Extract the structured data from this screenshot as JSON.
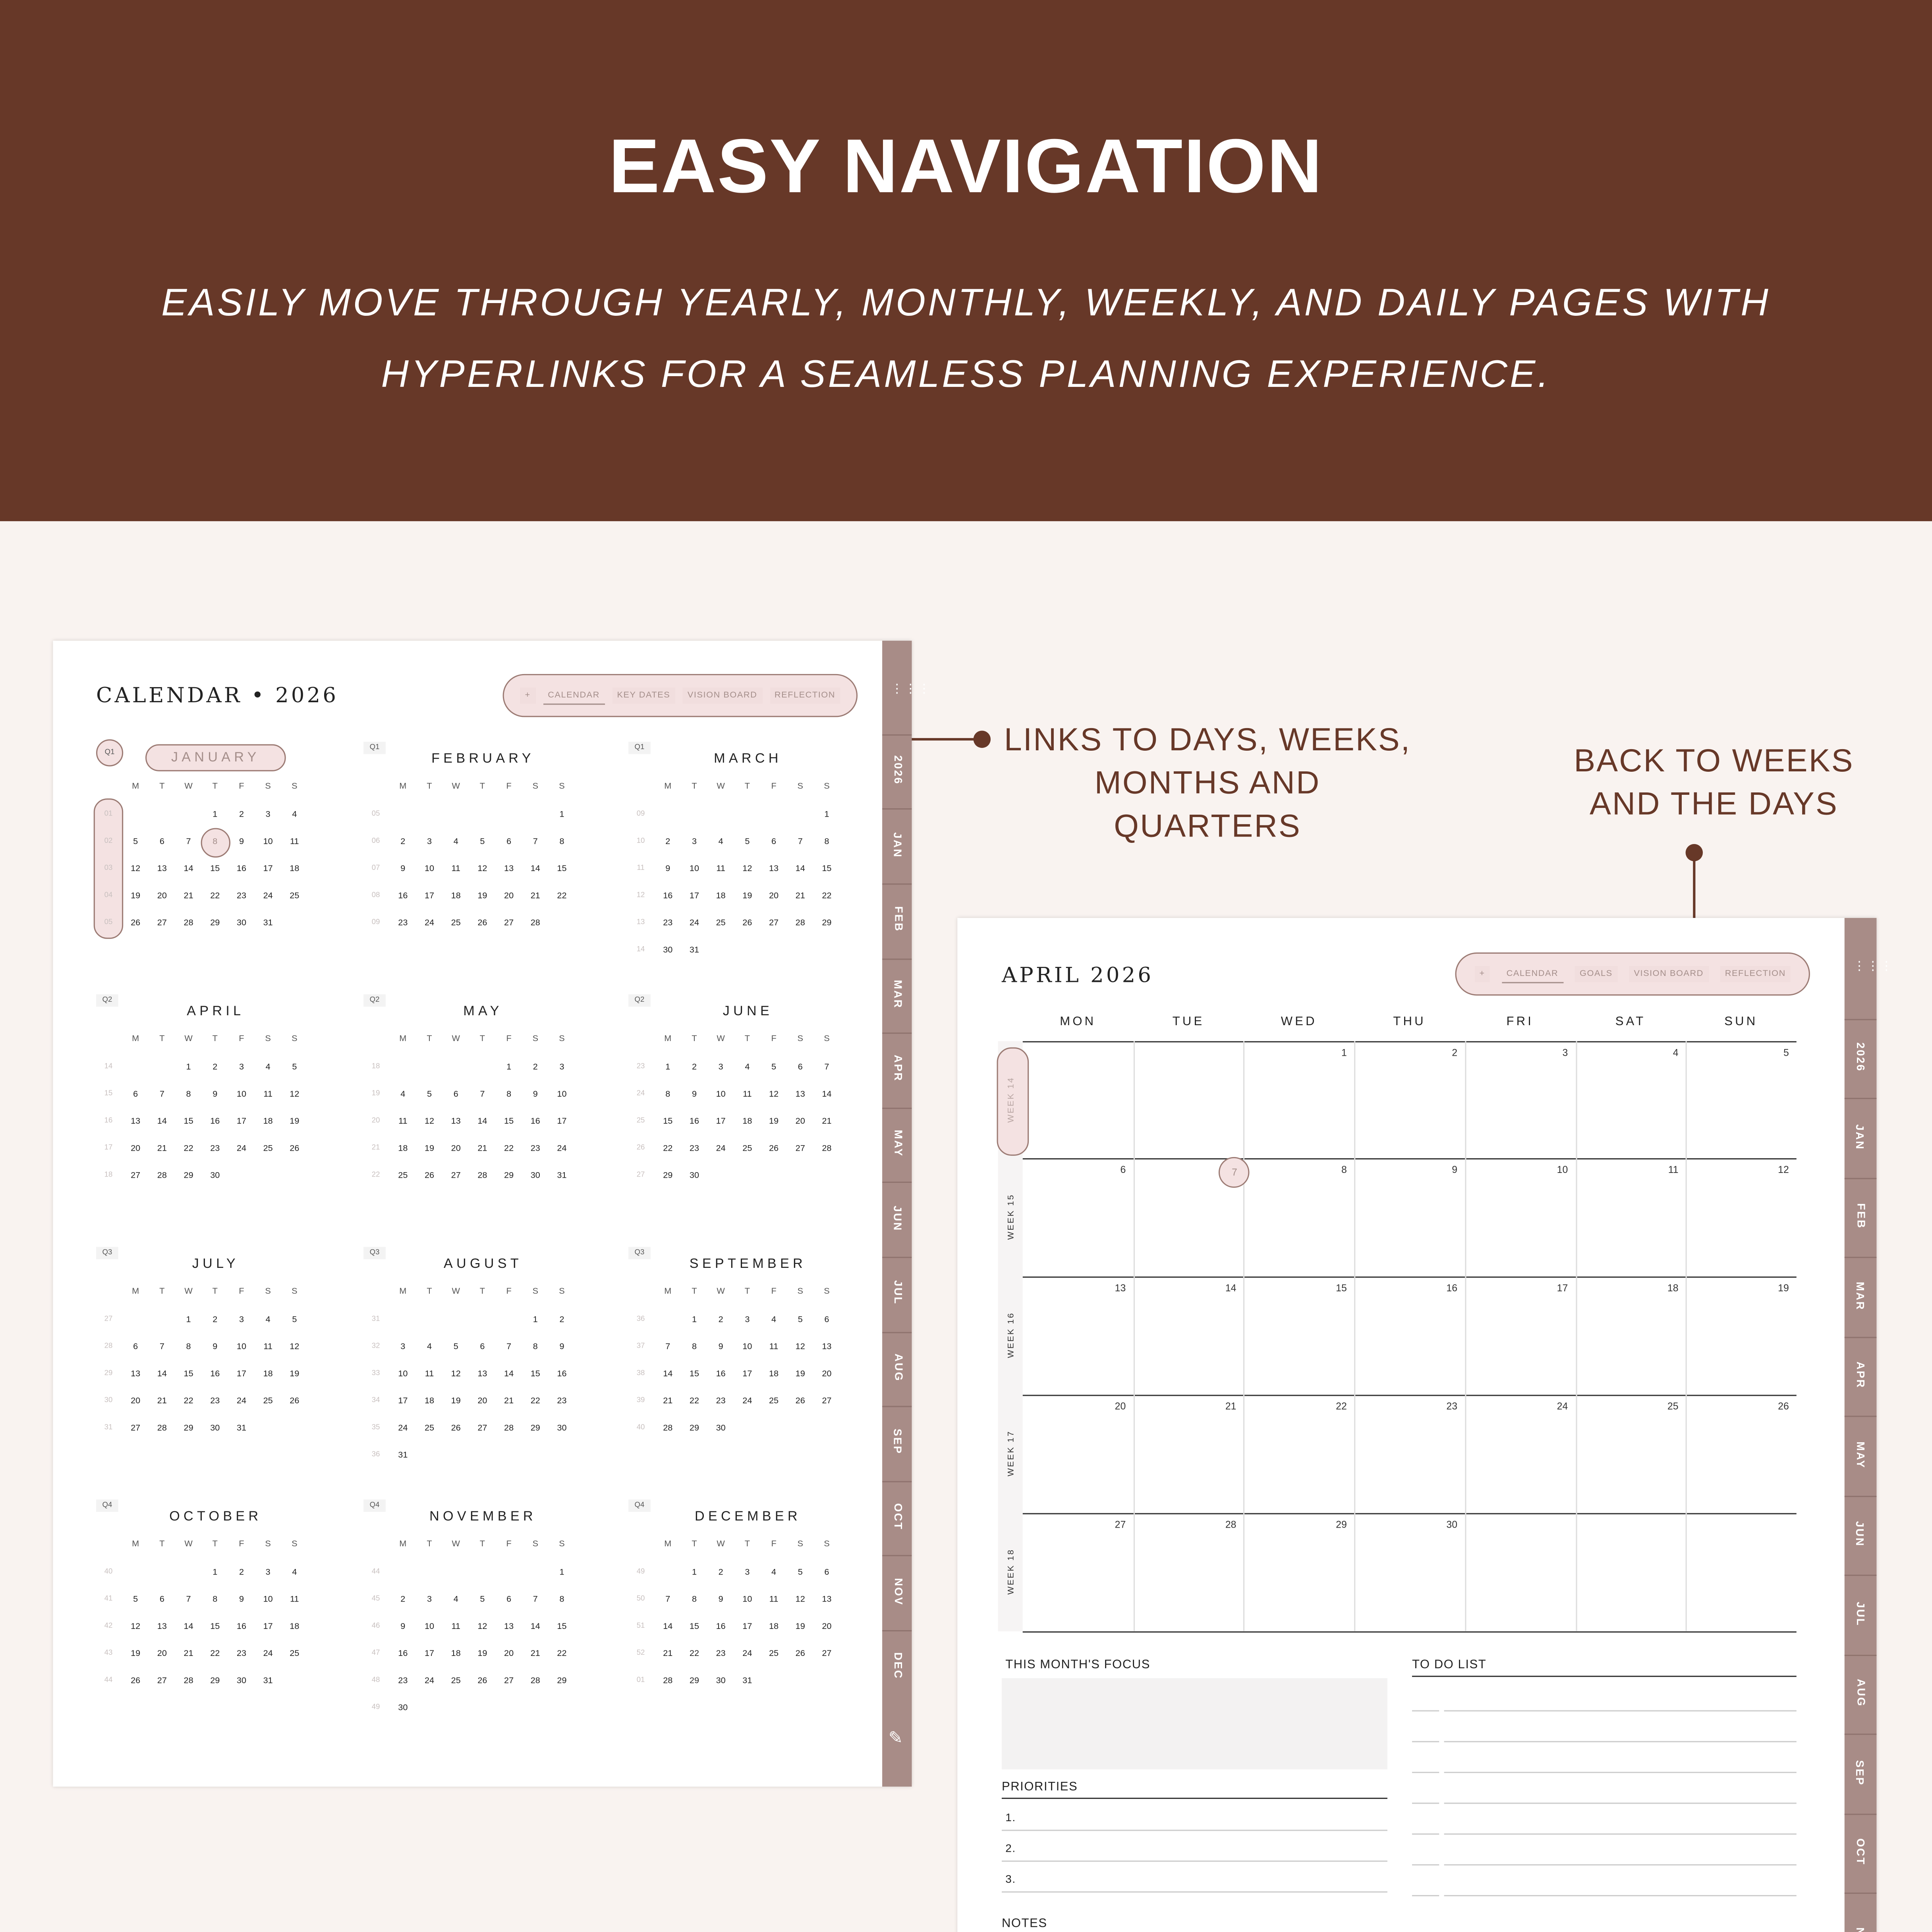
{
  "header": {
    "title": "EASY NAVIGATION",
    "subtitle_lines": [
      "EASILY MOVE THROUGH YEARLY, MONTHLY, WEEKLY, AND DAILY PAGES WITH",
      "HYPERLINKS FOR A SEAMLESS PLANNING EXPERIENCE."
    ]
  },
  "colors": {
    "brand": "#673828",
    "background": "#f9f3f0",
    "tab_strip": "#a88c87",
    "highlight": "#f4e2e2"
  },
  "annotations": {
    "left": [
      "LINKS TO DAYS, WEEKS,",
      "MONTHS AND QUARTERS"
    ],
    "right": [
      "BACK TO WEEKS",
      "AND THE DAYS"
    ]
  },
  "year_page": {
    "title": "CALENDAR",
    "bullet": "•",
    "year": "2026",
    "nav": {
      "plus": "+",
      "items": [
        "CALENDAR",
        "KEY DATES",
        "VISION BOARD",
        "REFLECTION"
      ],
      "active": "CALENDAR"
    },
    "weekday_headers": [
      "M",
      "T",
      "W",
      "T",
      "F",
      "S",
      "S"
    ],
    "highlighted_month": "JANUARY",
    "highlighted_day": 8,
    "highlighted_quarter": "Q1",
    "months": [
      {
        "name": "JANUARY",
        "quarter": "Q1",
        "offset": 3,
        "days": 31,
        "weeks": [
          "01",
          "02",
          "03",
          "04",
          "05"
        ]
      },
      {
        "name": "FEBRUARY",
        "quarter": "Q1",
        "offset": 6,
        "days": 28,
        "weeks": [
          "05",
          "06",
          "07",
          "08",
          "09"
        ]
      },
      {
        "name": "MARCH",
        "quarter": "Q1",
        "offset": 6,
        "days": 31,
        "weeks": [
          "09",
          "10",
          "11",
          "12",
          "13",
          "14"
        ]
      },
      {
        "name": "APRIL",
        "quarter": "Q2",
        "offset": 2,
        "days": 30,
        "weeks": [
          "14",
          "15",
          "16",
          "17",
          "18"
        ]
      },
      {
        "name": "MAY",
        "quarter": "Q2",
        "offset": 4,
        "days": 31,
        "weeks": [
          "18",
          "19",
          "20",
          "21",
          "22"
        ]
      },
      {
        "name": "JUNE",
        "quarter": "Q2",
        "offset": 0,
        "days": 30,
        "weeks": [
          "23",
          "24",
          "25",
          "26",
          "27"
        ]
      },
      {
        "name": "JULY",
        "quarter": "Q3",
        "offset": 2,
        "days": 31,
        "weeks": [
          "27",
          "28",
          "29",
          "30",
          "31"
        ]
      },
      {
        "name": "AUGUST",
        "quarter": "Q3",
        "offset": 5,
        "days": 31,
        "weeks": [
          "31",
          "32",
          "33",
          "34",
          "35",
          "36"
        ]
      },
      {
        "name": "SEPTEMBER",
        "quarter": "Q3",
        "offset": 1,
        "days": 30,
        "weeks": [
          "36",
          "37",
          "38",
          "39",
          "40"
        ]
      },
      {
        "name": "OCTOBER",
        "quarter": "Q4",
        "offset": 3,
        "days": 31,
        "weeks": [
          "40",
          "41",
          "42",
          "43",
          "44"
        ]
      },
      {
        "name": "NOVEMBER",
        "quarter": "Q4",
        "offset": 6,
        "days": 30,
        "weeks": [
          "44",
          "45",
          "46",
          "47",
          "48",
          "49"
        ]
      },
      {
        "name": "DECEMBER",
        "quarter": "Q4",
        "offset": 1,
        "days": 31,
        "weeks": [
          "49",
          "50",
          "51",
          "52",
          "01"
        ]
      }
    ],
    "tabs": [
      "2026",
      "JAN",
      "FEB",
      "MAR",
      "APR",
      "MAY",
      "JUN",
      "JUL",
      "AUG",
      "SEP",
      "OCT",
      "NOV",
      "DEC"
    ]
  },
  "month_page": {
    "title": "APRIL 2026",
    "nav": {
      "plus": "+",
      "items": [
        "CALENDAR",
        "GOALS",
        "VISION BOARD",
        "REFLECTION"
      ],
      "active": "CALENDAR"
    },
    "weekday_headers": [
      "MON",
      "TUE",
      "WED",
      "THU",
      "FRI",
      "SAT",
      "SUN"
    ],
    "offset": 2,
    "days": 30,
    "weeks": [
      "WEEK 14",
      "WEEK 15",
      "WEEK 16",
      "WEEK 17",
      "WEEK 18"
    ],
    "highlighted_week": "WEEK 14",
    "highlighted_day": 7,
    "focus_label": "THIS MONTH'S FOCUS",
    "todo_label": "TO DO LIST",
    "priorities_label": "PRIORITIES",
    "priorities": [
      "1.",
      "2.",
      "3."
    ],
    "notes_label": "NOTES",
    "tabs": [
      "2026",
      "JAN",
      "FEB",
      "MAR",
      "APR",
      "MAY",
      "JUN",
      "JUL",
      "AUG",
      "SEP",
      "OCT",
      "N"
    ]
  }
}
